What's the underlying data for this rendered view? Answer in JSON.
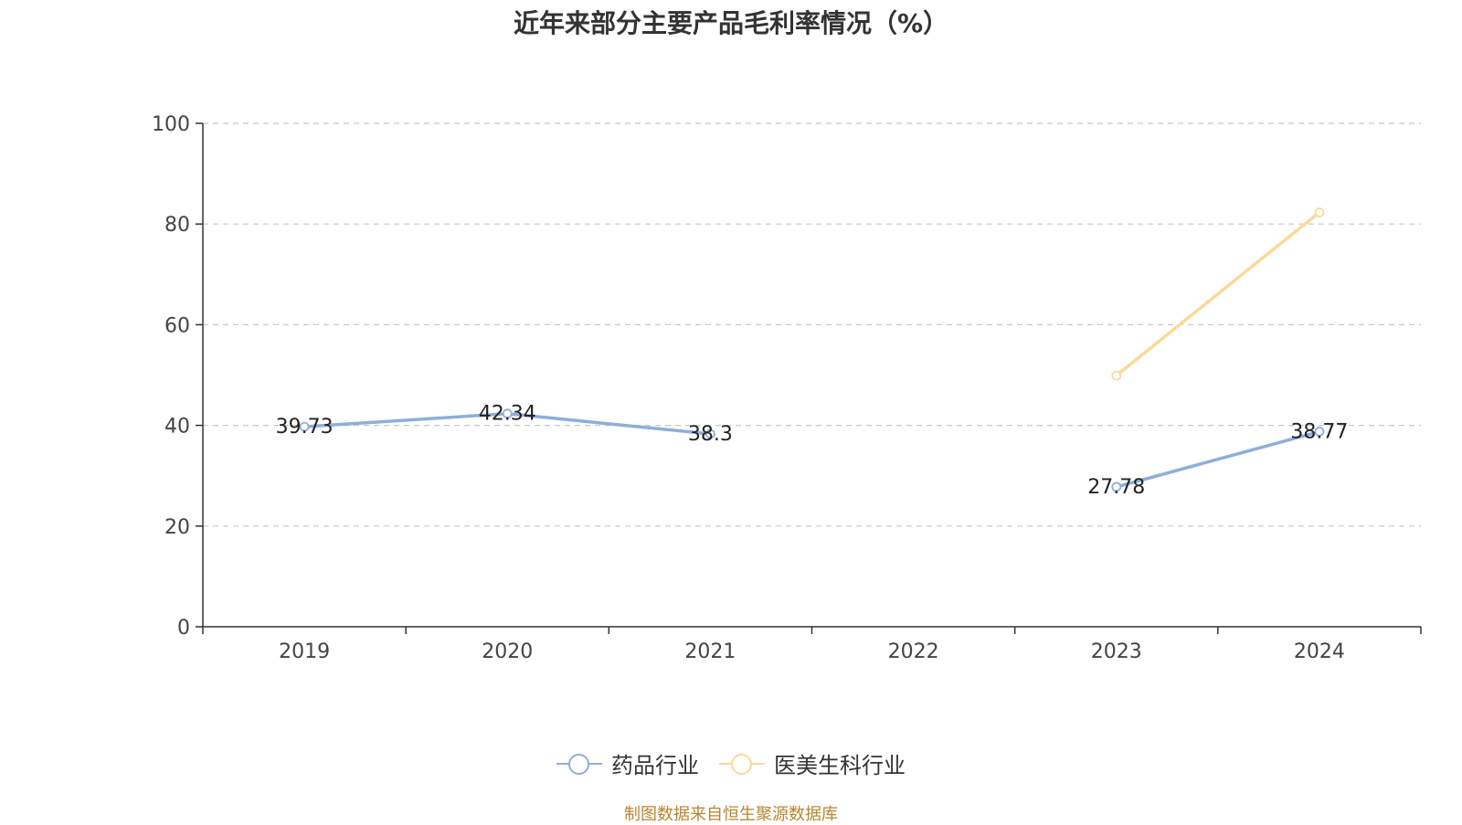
{
  "chart_data": {
    "type": "line",
    "title": "近年来部分主要产品毛利率情况（%）",
    "categories": [
      "2019",
      "2020",
      "2021",
      "2022",
      "2023",
      "2024"
    ],
    "ylim": [
      0,
      100
    ],
    "yticks": [
      0,
      20,
      40,
      60,
      80,
      100
    ],
    "grid": true,
    "legend_position": "bottom",
    "series": [
      {
        "name": "药品行业",
        "color": "#8eaedb",
        "values": [
          39.73,
          42.34,
          38.3,
          null,
          27.78,
          38.77
        ],
        "labels": [
          "39.73",
          "42.34",
          "38.3",
          null,
          "27.78",
          "38.77"
        ]
      },
      {
        "name": "医美生科行业",
        "color": "#fbd998",
        "values": [
          null,
          null,
          null,
          null,
          49.9,
          82.3
        ],
        "labels": [
          null,
          null,
          null,
          null,
          null,
          null
        ]
      }
    ]
  },
  "source": "制图数据来自恒生聚源数据库"
}
